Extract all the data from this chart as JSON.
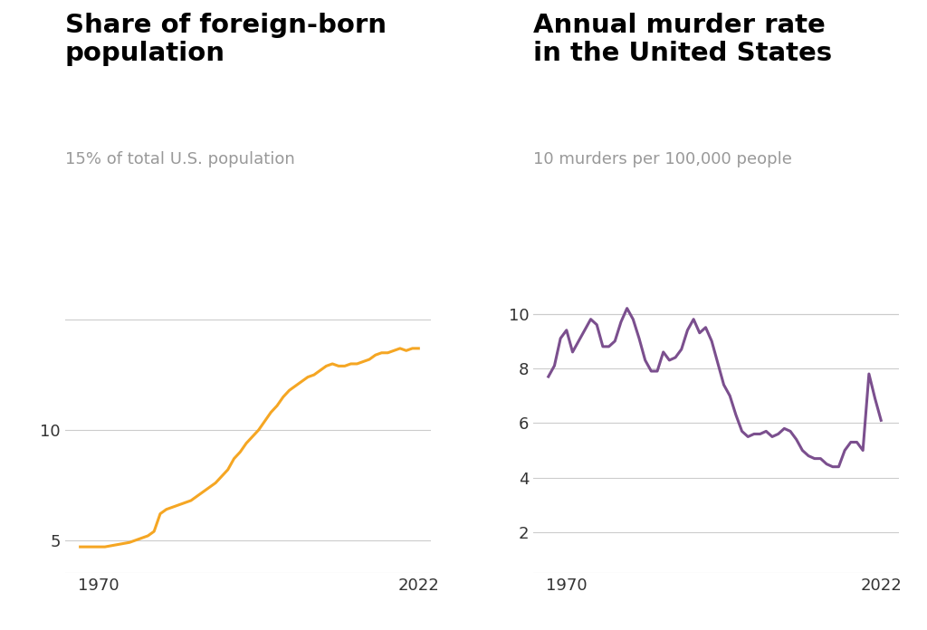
{
  "title1": "Share of foreign-born\npopulation",
  "subtitle1": "15% of total U.S. population",
  "title2": "Annual murder rate\nin the United States",
  "subtitle2": "10 murders per 100,000 people",
  "foreign_born": {
    "years": [
      1967,
      1968,
      1969,
      1970,
      1971,
      1972,
      1973,
      1974,
      1975,
      1976,
      1977,
      1978,
      1979,
      1980,
      1981,
      1982,
      1983,
      1984,
      1985,
      1986,
      1987,
      1988,
      1989,
      1990,
      1991,
      1992,
      1993,
      1994,
      1995,
      1996,
      1997,
      1998,
      1999,
      2000,
      2001,
      2002,
      2003,
      2004,
      2005,
      2006,
      2007,
      2008,
      2009,
      2010,
      2011,
      2012,
      2013,
      2014,
      2015,
      2016,
      2017,
      2018,
      2019,
      2020,
      2021,
      2022
    ],
    "values": [
      4.7,
      4.7,
      4.7,
      4.7,
      4.7,
      4.75,
      4.8,
      4.85,
      4.9,
      5.0,
      5.1,
      5.2,
      5.4,
      6.2,
      6.4,
      6.5,
      6.6,
      6.7,
      6.8,
      7.0,
      7.2,
      7.4,
      7.6,
      7.9,
      8.2,
      8.7,
      9.0,
      9.4,
      9.7,
      10.0,
      10.4,
      10.8,
      11.1,
      11.5,
      11.8,
      12.0,
      12.2,
      12.4,
      12.5,
      12.7,
      12.9,
      13.0,
      12.9,
      12.9,
      13.0,
      13.0,
      13.1,
      13.2,
      13.4,
      13.5,
      13.5,
      13.6,
      13.7,
      13.6,
      13.7,
      13.7
    ],
    "color": "#F5A623",
    "yticks": [
      5,
      10
    ],
    "ylim": [
      3.5,
      17.5
    ],
    "xlim": [
      1964.5,
      2024
    ]
  },
  "murder_rate": {
    "years": [
      1967,
      1968,
      1969,
      1970,
      1971,
      1972,
      1973,
      1974,
      1975,
      1976,
      1977,
      1978,
      1979,
      1980,
      1981,
      1982,
      1983,
      1984,
      1985,
      1986,
      1987,
      1988,
      1989,
      1990,
      1991,
      1992,
      1993,
      1994,
      1995,
      1996,
      1997,
      1998,
      1999,
      2000,
      2001,
      2002,
      2003,
      2004,
      2005,
      2006,
      2007,
      2008,
      2009,
      2010,
      2011,
      2012,
      2013,
      2014,
      2015,
      2016,
      2017,
      2018,
      2019,
      2020,
      2021,
      2022
    ],
    "values": [
      7.7,
      8.1,
      9.1,
      9.4,
      8.6,
      9.0,
      9.4,
      9.8,
      9.6,
      8.8,
      8.8,
      9.0,
      9.7,
      10.2,
      9.8,
      9.1,
      8.3,
      7.9,
      7.9,
      8.6,
      8.3,
      8.4,
      8.7,
      9.4,
      9.8,
      9.3,
      9.5,
      9.0,
      8.2,
      7.4,
      7.0,
      6.3,
      5.7,
      5.5,
      5.6,
      5.6,
      5.7,
      5.5,
      5.6,
      5.8,
      5.7,
      5.4,
      5.0,
      4.8,
      4.7,
      4.7,
      4.5,
      4.4,
      4.4,
      5.0,
      5.3,
      5.3,
      5.0,
      7.8,
      6.9,
      6.1
    ],
    "color": "#7B4F8E",
    "yticks": [
      2,
      4,
      6,
      8,
      10
    ],
    "ylim": [
      0.5,
      11.8
    ],
    "xlim": [
      1964.5,
      2025
    ]
  },
  "bg_color": "#FFFFFF",
  "grid_color": "#CCCCCC",
  "text_color": "#333333",
  "subtitle_color": "#999999",
  "title_fontsize": 21,
  "subtitle_fontsize": 13,
  "tick_fontsize": 13,
  "line_width": 2.2
}
